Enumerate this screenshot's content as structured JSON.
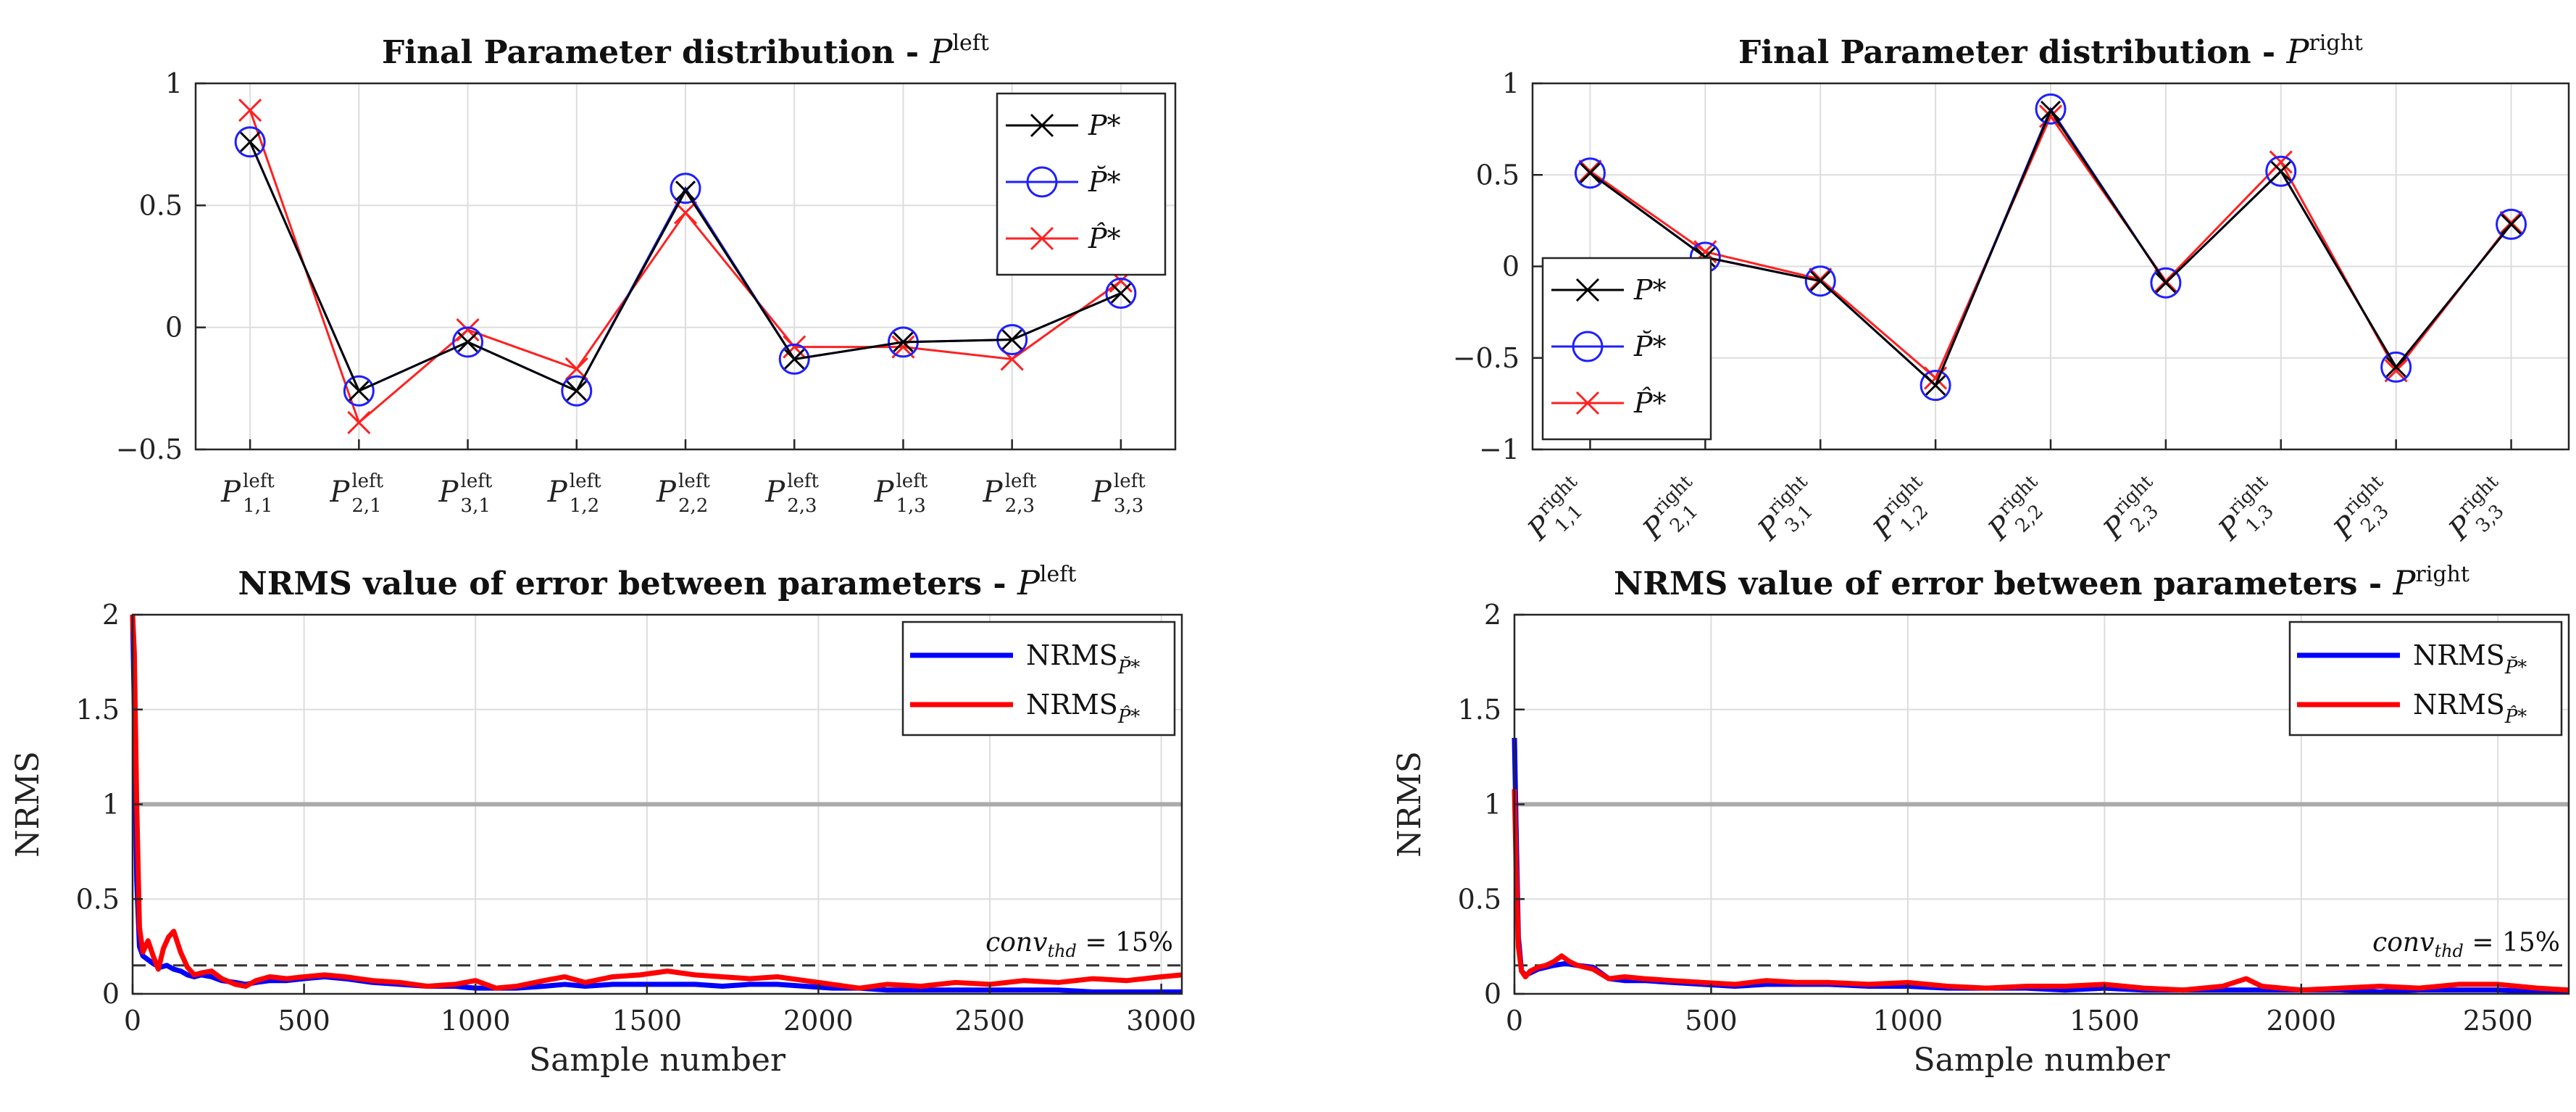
{
  "colors": {
    "p_star": "#000000",
    "p_check": "#1f1fff",
    "p_hat": "#ff2020",
    "nrms_check": "#0000ff",
    "nrms_hat": "#ff0000",
    "ref_line": "#aaaaaa",
    "threshold": "#333333",
    "grid": "#dddddd"
  },
  "legend_labels": {
    "p_star": "P*",
    "p_check": "P̆*",
    "p_hat": "P̂*",
    "nrms_main": "NRMS",
    "nrms_check_sub": "P̆*",
    "nrms_hat_sub": "P̂*"
  },
  "chart_data": [
    {
      "id": "param-left",
      "type": "line",
      "title_main": "Final Parameter distribution - ",
      "title_var": "P",
      "title_sup": "left",
      "legend": "top-right",
      "grid": true,
      "ylim": [
        -0.5,
        1
      ],
      "yticks": [
        -0.5,
        0,
        0.5,
        1
      ],
      "yticklabels": [
        "−0.5",
        "0",
        "0.5",
        "1"
      ],
      "categories": [
        {
          "main": "P",
          "sup": "left",
          "sub": "1,1"
        },
        {
          "main": "P",
          "sup": "left",
          "sub": "2,1"
        },
        {
          "main": "P",
          "sup": "left",
          "sub": "3,1"
        },
        {
          "main": "P",
          "sup": "left",
          "sub": "1,2"
        },
        {
          "main": "P",
          "sup": "left",
          "sub": "2,2"
        },
        {
          "main": "P",
          "sup": "left",
          "sub": "2,3"
        },
        {
          "main": "P",
          "sup": "left",
          "sub": "1,3"
        },
        {
          "main": "P",
          "sup": "left",
          "sub": "2,3"
        },
        {
          "main": "P",
          "sup": "left",
          "sub": "3,3"
        }
      ],
      "series": [
        {
          "key": "p_star",
          "values": [
            0.76,
            -0.26,
            -0.06,
            -0.26,
            0.56,
            -0.13,
            -0.06,
            -0.05,
            0.14
          ]
        },
        {
          "key": "p_check",
          "values": [
            0.76,
            -0.26,
            -0.06,
            -0.26,
            0.57,
            -0.13,
            -0.06,
            -0.05,
            0.14
          ]
        },
        {
          "key": "p_hat",
          "values": [
            0.89,
            -0.39,
            -0.01,
            -0.17,
            0.47,
            -0.08,
            -0.08,
            -0.13,
            0.19
          ]
        }
      ]
    },
    {
      "id": "param-right",
      "type": "line",
      "title_main": "Final Parameter distribution - ",
      "title_var": "P",
      "title_sup": "right",
      "legend": "bottom-left",
      "grid": true,
      "ylim": [
        -1,
        1
      ],
      "yticks": [
        -1,
        -0.5,
        0,
        0.5,
        1
      ],
      "yticklabels": [
        "−1",
        "−0.5",
        "0",
        "0.5",
        "1"
      ],
      "categories": [
        {
          "main": "P",
          "sup": "right",
          "sub": "1,1"
        },
        {
          "main": "P",
          "sup": "right",
          "sub": "2,1"
        },
        {
          "main": "P",
          "sup": "right",
          "sub": "3,1"
        },
        {
          "main": "P",
          "sup": "right",
          "sub": "1,2"
        },
        {
          "main": "P",
          "sup": "right",
          "sub": "2,2"
        },
        {
          "main": "P",
          "sup": "right",
          "sub": "2,3"
        },
        {
          "main": "P",
          "sup": "right",
          "sub": "1,3"
        },
        {
          "main": "P",
          "sup": "right",
          "sub": "2,3"
        },
        {
          "main": "P",
          "sup": "right",
          "sub": "3,3"
        }
      ],
      "series": [
        {
          "key": "p_star",
          "values": [
            0.51,
            0.05,
            -0.08,
            -0.65,
            0.85,
            -0.09,
            0.52,
            -0.55,
            0.23
          ]
        },
        {
          "key": "p_check",
          "values": [
            0.51,
            0.05,
            -0.08,
            -0.65,
            0.86,
            -0.09,
            0.52,
            -0.55,
            0.23
          ]
        },
        {
          "key": "p_hat",
          "values": [
            0.52,
            0.08,
            -0.07,
            -0.61,
            0.82,
            -0.08,
            0.57,
            -0.57,
            0.24
          ]
        }
      ]
    },
    {
      "id": "nrms-left",
      "type": "line",
      "title_main": "NRMS value of error between parameters - ",
      "title_var": "P",
      "title_sup": "left",
      "xlabel": "Sample number",
      "ylabel": "NRMS",
      "legend": "top-right",
      "grid": true,
      "xlim": [
        0,
        3060
      ],
      "ylim": [
        0,
        2
      ],
      "xticks": [
        0,
        500,
        1000,
        1500,
        2000,
        2500,
        3000
      ],
      "yticks": [
        0,
        0.5,
        1,
        1.5,
        2
      ],
      "reference_line": 1,
      "threshold": 0.15,
      "threshold_label": "conv",
      "threshold_label_sub": "thd",
      "threshold_label_rest": " = 15%",
      "series": [
        {
          "key": "nrms_check",
          "x": [
            0,
            5,
            12,
            20,
            30,
            45,
            60,
            80,
            100,
            120,
            140,
            160,
            180,
            200,
            230,
            260,
            300,
            330,
            360,
            400,
            450,
            500,
            560,
            620,
            700,
            780,
            860,
            940,
            1000,
            1060,
            1120,
            1200,
            1260,
            1320,
            1400,
            1480,
            1560,
            1640,
            1720,
            1800,
            1880,
            1960,
            2040,
            2120,
            2200,
            2300,
            2400,
            2500,
            2600,
            2700,
            2800,
            2900,
            3000,
            3060
          ],
          "y": [
            2.0,
            1.5,
            0.6,
            0.25,
            0.2,
            0.18,
            0.16,
            0.14,
            0.15,
            0.13,
            0.12,
            0.1,
            0.09,
            0.1,
            0.09,
            0.07,
            0.06,
            0.05,
            0.06,
            0.07,
            0.07,
            0.08,
            0.09,
            0.08,
            0.06,
            0.05,
            0.04,
            0.04,
            0.03,
            0.03,
            0.03,
            0.04,
            0.05,
            0.04,
            0.05,
            0.05,
            0.05,
            0.05,
            0.04,
            0.05,
            0.05,
            0.04,
            0.03,
            0.03,
            0.02,
            0.02,
            0.02,
            0.02,
            0.02,
            0.02,
            0.01,
            0.01,
            0.01,
            0.01
          ]
        },
        {
          "key": "nrms_hat",
          "x": [
            0,
            5,
            12,
            20,
            30,
            45,
            60,
            75,
            90,
            105,
            120,
            140,
            160,
            180,
            200,
            230,
            260,
            300,
            330,
            360,
            400,
            450,
            500,
            560,
            620,
            700,
            780,
            860,
            940,
            1000,
            1060,
            1120,
            1200,
            1260,
            1320,
            1400,
            1480,
            1560,
            1640,
            1720,
            1800,
            1880,
            1960,
            2040,
            2120,
            2200,
            2300,
            2400,
            2500,
            2600,
            2700,
            2800,
            2900,
            3000,
            3060
          ],
          "y": [
            2.0,
            1.8,
            1.0,
            0.35,
            0.22,
            0.28,
            0.2,
            0.13,
            0.24,
            0.3,
            0.33,
            0.22,
            0.14,
            0.1,
            0.11,
            0.12,
            0.08,
            0.05,
            0.04,
            0.07,
            0.09,
            0.08,
            0.09,
            0.1,
            0.09,
            0.07,
            0.06,
            0.04,
            0.05,
            0.07,
            0.03,
            0.04,
            0.07,
            0.09,
            0.06,
            0.09,
            0.1,
            0.12,
            0.1,
            0.09,
            0.08,
            0.09,
            0.07,
            0.05,
            0.03,
            0.05,
            0.04,
            0.06,
            0.05,
            0.07,
            0.06,
            0.08,
            0.07,
            0.09,
            0.1
          ]
        }
      ]
    },
    {
      "id": "nrms-right",
      "type": "line",
      "title_main": "NRMS value of error between parameters - ",
      "title_var": "P",
      "title_sup": "right",
      "xlabel": "Sample number",
      "ylabel": "NRMS",
      "legend": "top-right",
      "grid": true,
      "xlim": [
        0,
        2680
      ],
      "ylim": [
        0,
        2
      ],
      "xticks": [
        0,
        500,
        1000,
        1500,
        2000,
        2500
      ],
      "yticks": [
        0,
        0.5,
        1,
        1.5,
        2
      ],
      "reference_line": 1,
      "threshold": 0.15,
      "threshold_label": "conv",
      "threshold_label_sub": "thd",
      "threshold_label_rest": " = 15%",
      "series": [
        {
          "key": "nrms_check",
          "x": [
            0,
            4,
            10,
            18,
            28,
            40,
            60,
            80,
            100,
            130,
            160,
            200,
            240,
            280,
            330,
            400,
            480,
            560,
            640,
            720,
            800,
            900,
            1000,
            1100,
            1200,
            1300,
            1400,
            1500,
            1600,
            1700,
            1800,
            1900,
            2000,
            2100,
            2200,
            2300,
            2400,
            2500,
            2600,
            2680
          ],
          "y": [
            1.35,
            0.9,
            0.3,
            0.12,
            0.1,
            0.11,
            0.13,
            0.14,
            0.15,
            0.16,
            0.15,
            0.14,
            0.08,
            0.07,
            0.07,
            0.06,
            0.05,
            0.04,
            0.05,
            0.05,
            0.05,
            0.04,
            0.04,
            0.03,
            0.03,
            0.03,
            0.02,
            0.03,
            0.02,
            0.02,
            0.02,
            0.02,
            0.02,
            0.02,
            0.01,
            0.02,
            0.02,
            0.02,
            0.01,
            0.01
          ]
        },
        {
          "key": "nrms_hat",
          "x": [
            0,
            4,
            10,
            18,
            28,
            40,
            60,
            80,
            100,
            120,
            140,
            160,
            200,
            240,
            280,
            330,
            400,
            480,
            560,
            640,
            720,
            800,
            900,
            1000,
            1100,
            1200,
            1300,
            1400,
            1500,
            1600,
            1700,
            1800,
            1860,
            1900,
            2000,
            2100,
            2200,
            2300,
            2400,
            2500,
            2600,
            2680
          ],
          "y": [
            1.08,
            0.7,
            0.25,
            0.12,
            0.09,
            0.12,
            0.14,
            0.15,
            0.17,
            0.2,
            0.17,
            0.15,
            0.13,
            0.08,
            0.09,
            0.08,
            0.07,
            0.06,
            0.05,
            0.07,
            0.06,
            0.06,
            0.05,
            0.06,
            0.04,
            0.03,
            0.04,
            0.04,
            0.05,
            0.03,
            0.02,
            0.04,
            0.08,
            0.04,
            0.02,
            0.03,
            0.04,
            0.03,
            0.05,
            0.05,
            0.03,
            0.02
          ]
        }
      ]
    }
  ]
}
